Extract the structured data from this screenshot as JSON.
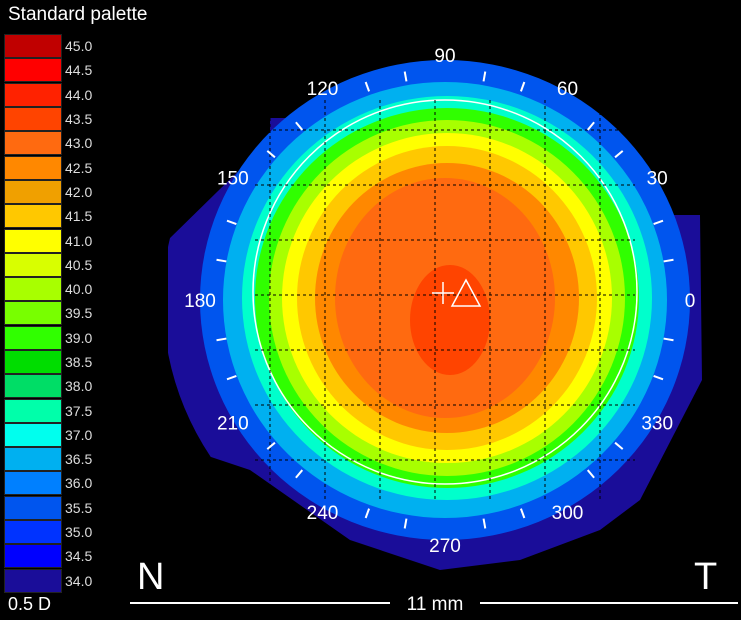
{
  "palette": {
    "title": "Standard palette",
    "step": "0.5 D",
    "entries": [
      {
        "value": "45.0",
        "color": "#c00000"
      },
      {
        "value": "44.5",
        "color": "#ff0000"
      },
      {
        "value": "44.0",
        "color": "#ff2200"
      },
      {
        "value": "43.5",
        "color": "#ff4400"
      },
      {
        "value": "43.0",
        "color": "#ff6a10"
      },
      {
        "value": "42.5",
        "color": "#ff8800"
      },
      {
        "value": "42.0",
        "color": "#f0a000"
      },
      {
        "value": "41.5",
        "color": "#ffc800"
      },
      {
        "value": "41.0",
        "color": "#ffff00"
      },
      {
        "value": "40.5",
        "color": "#d8ff00"
      },
      {
        "value": "40.0",
        "color": "#a8ff00"
      },
      {
        "value": "39.5",
        "color": "#78ff00"
      },
      {
        "value": "39.0",
        "color": "#30ff00"
      },
      {
        "value": "38.5",
        "color": "#00dd00"
      },
      {
        "value": "38.0",
        "color": "#00dd66"
      },
      {
        "value": "37.5",
        "color": "#00ffaa"
      },
      {
        "value": "37.0",
        "color": "#00ffee"
      },
      {
        "value": "36.5",
        "color": "#00b0f0"
      },
      {
        "value": "36.0",
        "color": "#0080ff"
      },
      {
        "value": "35.5",
        "color": "#0055ee"
      },
      {
        "value": "35.0",
        "color": "#0033ff"
      },
      {
        "value": "34.5",
        "color": "#0000ff"
      },
      {
        "value": "34.0",
        "color": "#1a0d99"
      }
    ]
  },
  "axis_labels": [
    "0",
    "30",
    "60",
    "90",
    "120",
    "150",
    "180",
    "210",
    "240",
    "270",
    "300",
    "330"
  ],
  "orientation": {
    "left": "N",
    "right": "T"
  },
  "scale": "11 mm"
}
